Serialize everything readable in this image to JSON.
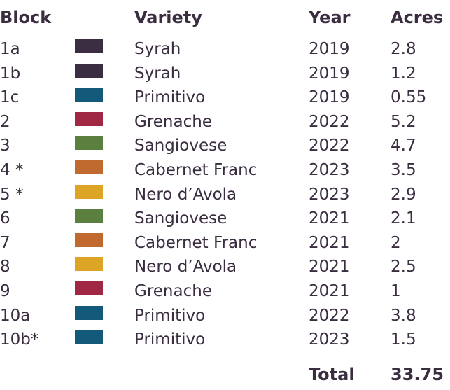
{
  "headers": {
    "block": "Block",
    "variety": "Variety",
    "year": "Year",
    "acres": "Acres"
  },
  "rows": [
    {
      "block": "1a",
      "color": "#3b2e42",
      "variety": "Syrah",
      "year": "2019",
      "acres": "2.8"
    },
    {
      "block": "1b",
      "color": "#3b2e42",
      "variety": "Syrah",
      "year": "2019",
      "acres": "1.2"
    },
    {
      "block": "1c",
      "color": "#12597a",
      "variety": "Primitivo",
      "year": "2019",
      "acres": "0.55"
    },
    {
      "block": "2",
      "color": "#a02845",
      "variety": "Grenache",
      "year": "2022",
      "acres": "5.2"
    },
    {
      "block": "3",
      "color": "#5a7f3e",
      "variety": "Sangiovese",
      "year": "2022",
      "acres": "4.7"
    },
    {
      "block": "4 *",
      "color": "#c06a30",
      "variety": "Cabernet Franc",
      "year": "2023",
      "acres": "3.5"
    },
    {
      "block": "5 *",
      "color": "#dca526",
      "variety": "Nero d’Avola",
      "year": "2023",
      "acres": "2.9"
    },
    {
      "block": "6",
      "color": "#5a7f3e",
      "variety": "Sangiovese",
      "year": "2021",
      "acres": "2.1"
    },
    {
      "block": "7",
      "color": "#c06a30",
      "variety": "Cabernet Franc",
      "year": "2021",
      "acres": "2"
    },
    {
      "block": "8",
      "color": "#dca526",
      "variety": "Nero d’Avola",
      "year": "2021",
      "acres": "2.5"
    },
    {
      "block": "9",
      "color": "#a02845",
      "variety": "Grenache",
      "year": "2021",
      "acres": "1"
    },
    {
      "block": "10a",
      "color": "#12597a",
      "variety": "Primitivo",
      "year": "2022",
      "acres": "3.8"
    },
    {
      "block": "10b*",
      "color": "#12597a",
      "variety": "Primitivo",
      "year": "2023",
      "acres": "1.5"
    }
  ],
  "total": {
    "label": "Total",
    "value": "33.75"
  },
  "colors": {
    "text": "#3a2d40"
  }
}
